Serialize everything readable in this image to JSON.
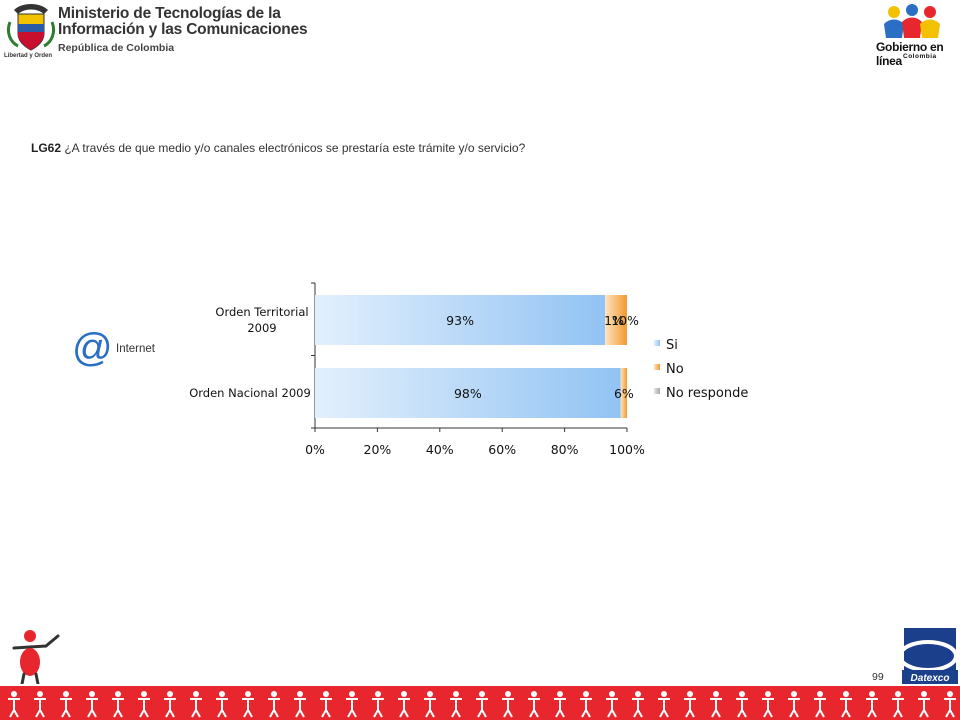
{
  "header": {
    "ministry_name_line1": "Ministerio de Tecnologías de la",
    "ministry_name_line2": "Información y las Comunicaciones",
    "ministry_subtitle": "República de Colombia",
    "coat_motto": "Libertad y Orden",
    "gov_logo_text": "Gobierno en línea",
    "gov_logo_country": "Colombia"
  },
  "question": {
    "code": "LG62",
    "text": " ¿A través de que medio y/o canales electrónicos se prestaría este trámite y/o servicio?"
  },
  "channel": {
    "icon": "at-sign-icon",
    "symbol": "@",
    "label": "Internet"
  },
  "chart_data": {
    "type": "bar",
    "orientation": "horizontal",
    "stacked": true,
    "categories": [
      "Orden Territorial 2009",
      "Orden Nacional 2009"
    ],
    "category_label_lines": [
      [
        "Orden Territorial",
        "2009"
      ],
      [
        "Orden Nacional 2009"
      ]
    ],
    "series": [
      {
        "name": "Si",
        "values": [
          93,
          98
        ],
        "labels": [
          "93%",
          "98%"
        ],
        "color": "#9cc9f5"
      },
      {
        "name": "No",
        "values": [
          10,
          6
        ],
        "labels": [
          "10%",
          "6%"
        ],
        "color": "#f5a94a"
      },
      {
        "name": "No responde",
        "values": [
          1,
          0
        ],
        "labels": [
          "1%",
          ""
        ],
        "color": "#b0b0b0"
      }
    ],
    "x_ticks": [
      "0%",
      "20%",
      "40%",
      "60%",
      "80%",
      "100%"
    ],
    "xlim": [
      0,
      100
    ],
    "legend_position": "right",
    "grid": false
  },
  "footer": {
    "page_number": "99",
    "datexco_label": "Datexco"
  },
  "colors": {
    "accent_red": "#e8262e",
    "icon_blue": "#2a6fc4"
  }
}
